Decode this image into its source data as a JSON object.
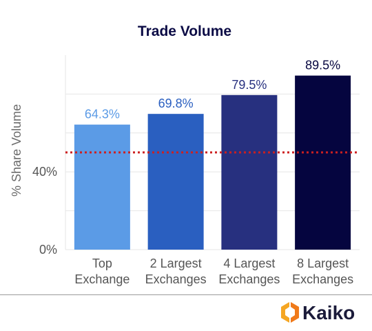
{
  "chart_data": {
    "type": "bar",
    "title": "Trade Volume",
    "ylabel": "% Share Volume",
    "categories": [
      [
        "Top",
        "Exchange"
      ],
      [
        "2 Largest",
        "Exchanges"
      ],
      [
        "4 Largest",
        "Exchanges"
      ],
      [
        "8 Largest",
        "Exchanges"
      ]
    ],
    "values": [
      64.3,
      69.8,
      79.5,
      89.5
    ],
    "data_labels": [
      "64.3%",
      "69.8%",
      "79.5%",
      "89.5%"
    ],
    "bar_colors": [
      "#5b9be6",
      "#2a5fc0",
      "#27307f",
      "#05053f"
    ],
    "label_colors": [
      "#5b9be6",
      "#2a5fc0",
      "#27307f",
      "#05053f"
    ],
    "y_ticks": [
      {
        "value": 0,
        "label": "0%"
      },
      {
        "value": 40,
        "label": "40%"
      }
    ],
    "ylim": [
      0,
      100
    ],
    "reference_line": {
      "value": 50,
      "color": "#cc1f1f",
      "style": "dotted"
    },
    "grid": true,
    "legend": "none"
  },
  "branding": {
    "logo_text": "Kaiko",
    "logo_icon": "kaiko-hexagon-icon",
    "logo_colors": [
      "#f5a623",
      "#f07a1a"
    ]
  }
}
